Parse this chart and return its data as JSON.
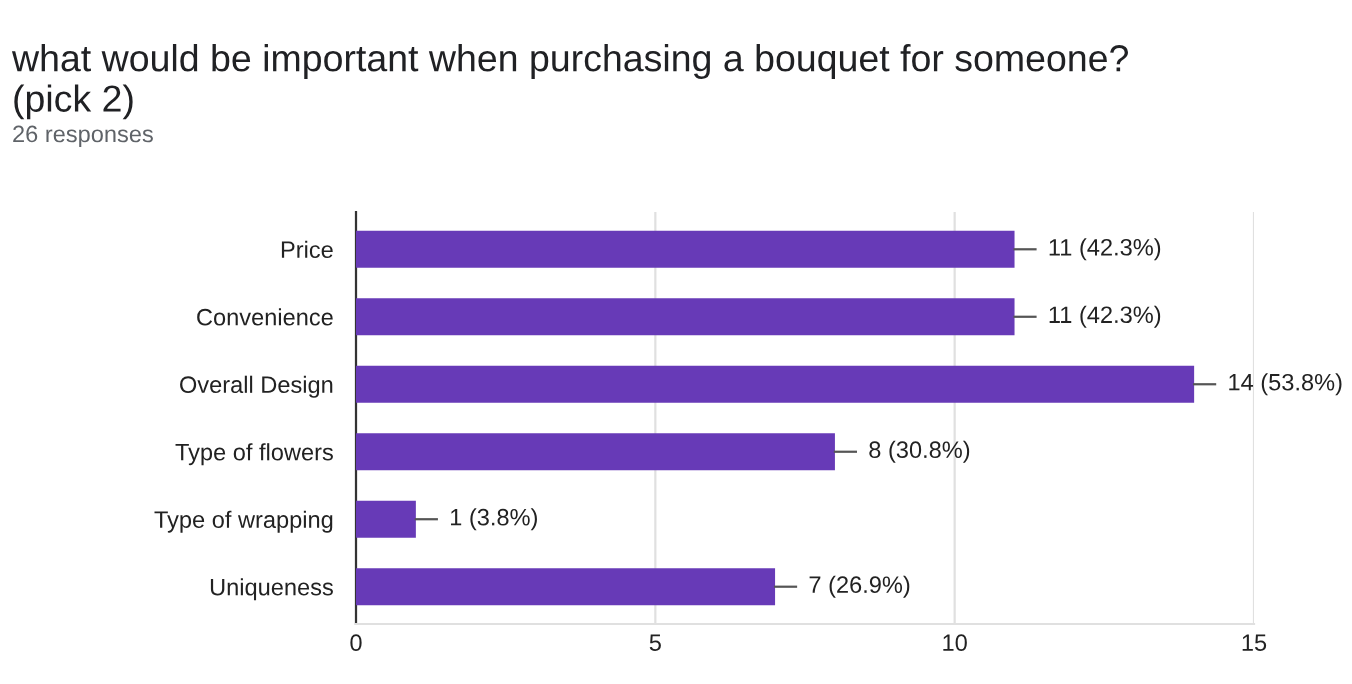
{
  "chart_data": {
    "type": "bar",
    "orientation": "horizontal",
    "title": "what would be important when purchasing a bouquet for someone?\n(pick 2)",
    "subtitle": "26 responses",
    "categories": [
      "Price",
      "Convenience",
      "Overall Design",
      "Type of flowers",
      "Type of wrapping",
      "Uniqueness"
    ],
    "values": [
      11,
      11,
      14,
      8,
      1,
      7
    ],
    "value_labels": [
      "11 (42.3%)",
      "11 (42.3%)",
      "14 (53.8%)",
      "8 (30.8%)",
      "1 (3.8%)",
      "7 (26.9%)"
    ],
    "color": "#673ab7",
    "xlim": [
      0,
      15
    ],
    "xticks": [
      0,
      5,
      10,
      15
    ],
    "grid": "x"
  }
}
